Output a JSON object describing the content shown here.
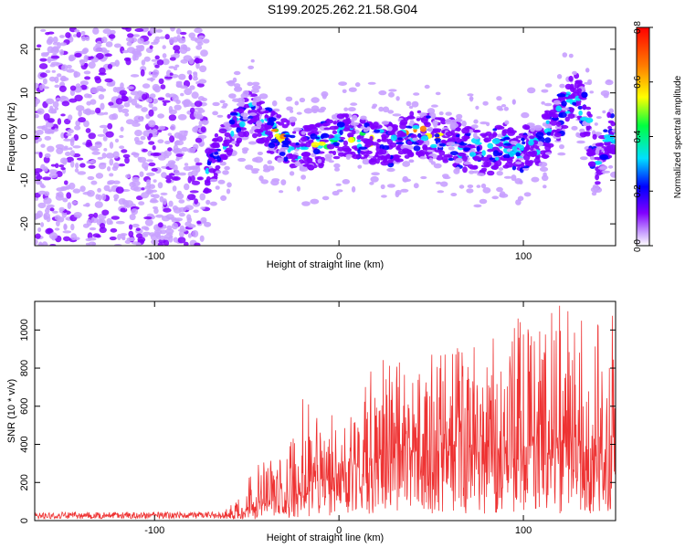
{
  "title": "S199.2025.262.21.58.G04",
  "chart_data": [
    {
      "type": "heatmap",
      "xlabel": "Height of straight line (km)",
      "ylabel": "Frequency (Hz)",
      "xlim": [
        -165,
        150
      ],
      "ylim": [
        -25,
        25
      ],
      "x_ticks": [
        -100,
        0,
        100
      ],
      "y_ticks": [
        -20,
        -10,
        0,
        10,
        20
      ],
      "colorbar": {
        "label": "Normalized spectral amplitude",
        "range": [
          0.0,
          0.8
        ],
        "ticks": [
          0.0,
          0.2,
          0.4,
          0.6,
          0.8
        ],
        "colors": [
          "#ffffff",
          "#c8a0ff",
          "#8000ff",
          "#0000ff",
          "#00e0ff",
          "#00ff40",
          "#ffff00",
          "#ff8000",
          "#ff0000"
        ]
      },
      "ridge": {
        "x": [
          -72,
          -65,
          -55,
          -48,
          -40,
          -30,
          -20,
          -10,
          0,
          10,
          20,
          30,
          40,
          50,
          60,
          70,
          80,
          90,
          100,
          110,
          120,
          128,
          135,
          140,
          145
        ],
        "y": [
          -8,
          -3,
          3,
          6,
          2,
          -1,
          -3,
          -2,
          0,
          0,
          -1,
          -2,
          1,
          0,
          -1,
          -3,
          -4,
          -2,
          -3,
          -1,
          5,
          10,
          3,
          -8,
          0
        ]
      }
    },
    {
      "type": "line",
      "xlabel": "Height of straight line (km)",
      "ylabel": "SNR (10 * v/v)",
      "xlim": [
        -165,
        150
      ],
      "ylim": [
        0,
        1150
      ],
      "x_ticks": [
        -100,
        0,
        100
      ],
      "y_ticks": [
        0,
        200,
        400,
        600,
        800,
        1000
      ],
      "color": "#ee3333",
      "envelope": {
        "x": [
          -165,
          -65,
          -60,
          -50,
          -40,
          -30,
          -20,
          -10,
          0,
          10,
          20,
          30,
          40,
          50,
          60,
          70,
          80,
          90,
          100,
          110,
          120,
          130,
          140,
          150
        ],
        "base": [
          15,
          15,
          30,
          60,
          90,
          110,
          150,
          200,
          250,
          300,
          330,
          350,
          360,
          370,
          380,
          380,
          370,
          370,
          380,
          380,
          380,
          380,
          370,
          360
        ],
        "peak": [
          45,
          40,
          70,
          240,
          330,
          340,
          640,
          560,
          560,
          640,
          900,
          860,
          780,
          870,
          920,
          960,
          940,
          990,
          1100,
          1050,
          1150,
          1080,
          1060,
          1100
        ]
      }
    }
  ]
}
